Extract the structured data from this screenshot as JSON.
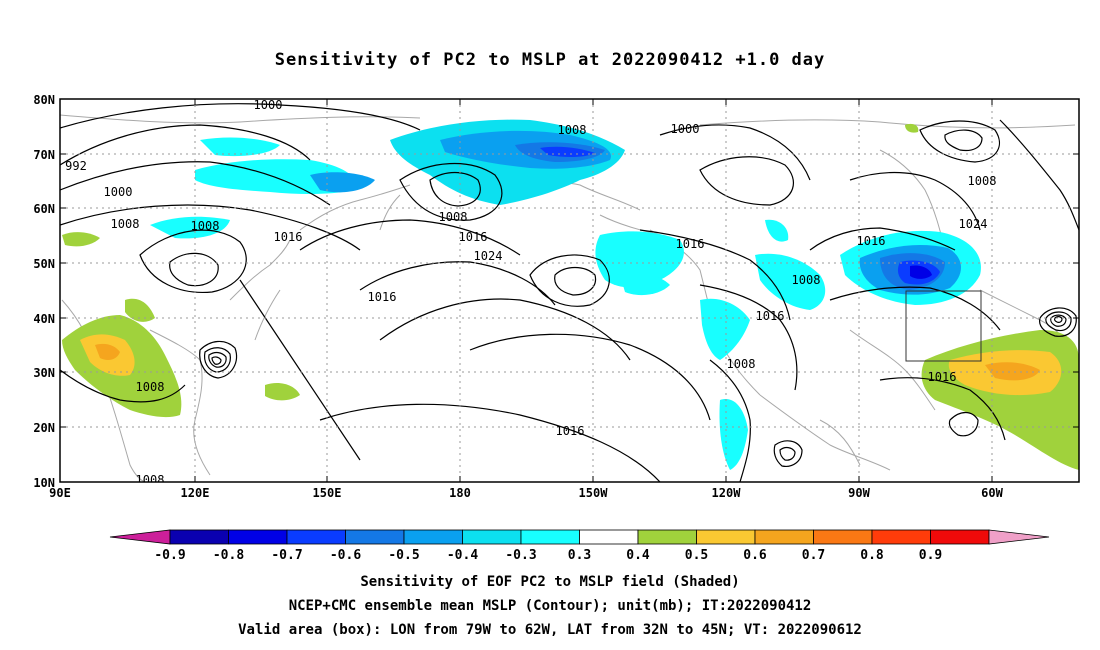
{
  "title": "Sensitivity of PC2 to MSLP at 2022090412 +1.0 day",
  "lat_labels": [
    "80N",
    "70N",
    "60N",
    "50N",
    "40N",
    "30N",
    "20N",
    "10N"
  ],
  "lon_labels": [
    "90E",
    "120E",
    "150E",
    "180",
    "150W",
    "120W",
    "90W",
    "60W"
  ],
  "contour_labels": [
    "1000",
    "992",
    "1000",
    "1008",
    "1008",
    "1016",
    "1008",
    "1008",
    "1016",
    "1024",
    "1016",
    "1000",
    "1016",
    "1008",
    "1016",
    "1008",
    "1016",
    "1008",
    "1024",
    "1016",
    "1016",
    "1008",
    "1008"
  ],
  "colorbar": {
    "ticks": [
      "-0.9",
      "-0.8",
      "-0.7",
      "-0.6",
      "-0.5",
      "-0.4",
      "-0.3",
      "0.3",
      "0.4",
      "0.5",
      "0.6",
      "0.7",
      "0.8",
      "0.9"
    ],
    "colors": [
      "#cc1f9a",
      "#0a00b0",
      "#0000e6",
      "#0a3cff",
      "#1478e6",
      "#0aa0f0",
      "#0ce0f0",
      "#18ffff",
      "#ffffff",
      "#a0d23c",
      "#fac832",
      "#f5a51e",
      "#fa7814",
      "#ff3c0a",
      "#f00a0a",
      "#f0a0c8"
    ]
  },
  "valid_box": {
    "lon_from": "79W",
    "lon_to": "62W",
    "lat_from": "32N",
    "lat_to": "45N"
  },
  "captions": {
    "line1": "Sensitivity of EOF PC2 to MSLP field (Shaded)",
    "line2": "NCEP+CMC ensemble mean MSLP (Contour); unit(mb); IT:2022090412",
    "line3": "Valid area (box): LON from 79W to 62W, LAT from 32N to 45N; VT: 2022090612"
  }
}
